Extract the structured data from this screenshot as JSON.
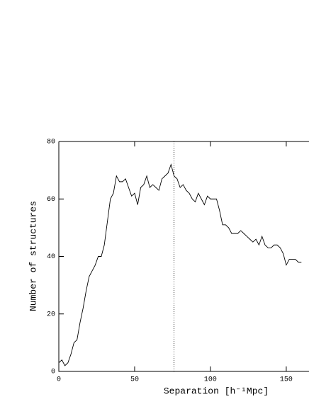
{
  "chart_data": {
    "type": "line",
    "xlabel": "Separation [h⁻¹Mpc]",
    "ylabel": "Number of structures",
    "x": [
      0,
      2,
      4,
      6,
      8,
      10,
      12,
      14,
      16,
      18,
      20,
      22,
      24,
      26,
      28,
      30,
      32,
      34,
      36,
      38,
      40,
      42,
      44,
      46,
      48,
      50,
      52,
      54,
      56,
      58,
      60,
      62,
      64,
      66,
      68,
      70,
      72,
      74,
      76,
      78,
      80,
      82,
      84,
      86,
      88,
      90,
      92,
      94,
      96,
      98,
      100,
      102,
      104,
      106,
      108,
      110,
      112,
      114,
      116,
      118,
      120,
      122,
      124,
      126,
      128,
      130,
      132,
      134,
      136,
      138,
      140,
      142,
      144,
      146,
      148,
      150,
      152,
      154,
      156,
      158,
      160
    ],
    "values": [
      3,
      4,
      2,
      3,
      6,
      10,
      11,
      17,
      22,
      28,
      33,
      35,
      37,
      40,
      40,
      44,
      52,
      60,
      62,
      68,
      66,
      66,
      67,
      64,
      61,
      62,
      58,
      64,
      65,
      68,
      64,
      65,
      64,
      63,
      67,
      68,
      69,
      72,
      68,
      67,
      64,
      65,
      63,
      62,
      60,
      59,
      62,
      60,
      58,
      61,
      60,
      60,
      60,
      56,
      51,
      51,
      50,
      48,
      48,
      48,
      49,
      48,
      47,
      46,
      45,
      46,
      44,
      47,
      44,
      43,
      43,
      44,
      44,
      43,
      41,
      37,
      39,
      39,
      39,
      38,
      38
    ],
    "color": "#000000",
    "vline": 76,
    "xlim": [
      0,
      165
    ],
    "xticks": [
      0,
      50,
      100,
      150
    ],
    "ylim": [
      0,
      80
    ],
    "yticks": [
      0,
      20,
      40,
      60,
      80
    ]
  }
}
